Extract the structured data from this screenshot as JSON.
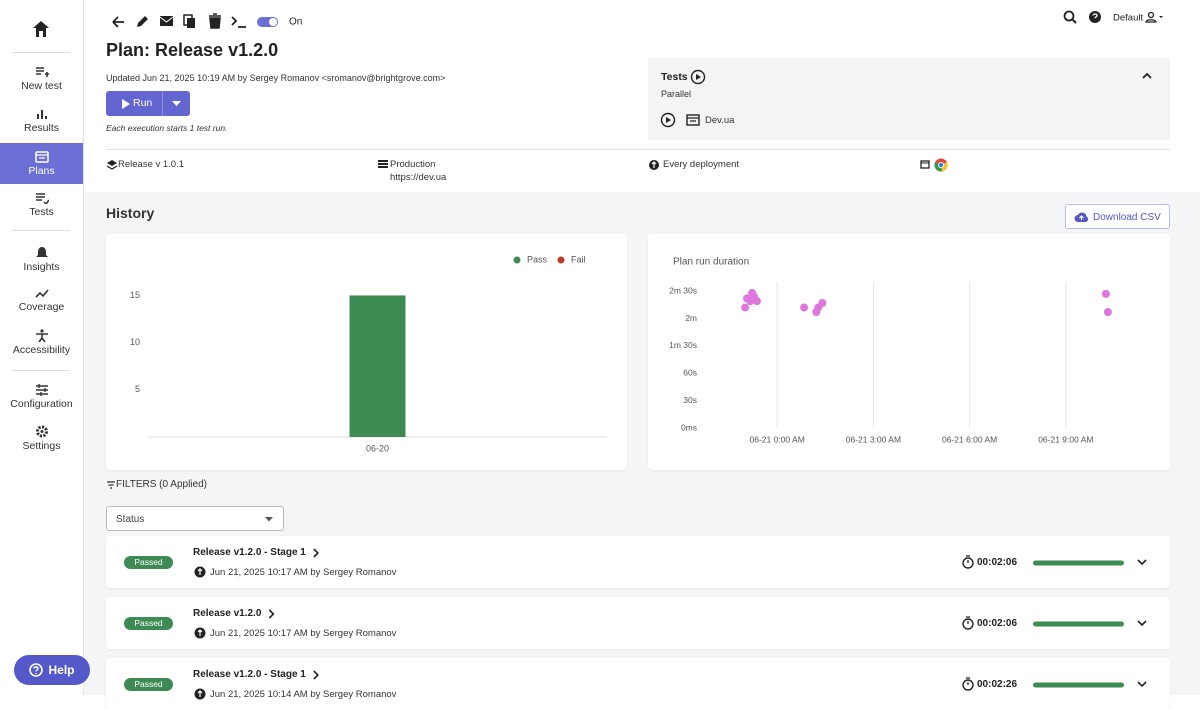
{
  "sidebar": {
    "items": [
      "New test",
      "Results",
      "Plans",
      "Tests",
      "Insights",
      "Coverage",
      "Accessibility",
      "Configuration",
      "Settings"
    ],
    "help": "Help"
  },
  "toolbar": {
    "toggle": "On",
    "user": "Default"
  },
  "header": {
    "title": "Plan: Release v1.2.0",
    "updated": "Updated Jun 21, 2025 10:19 AM by Sergey Romanov <sromanov@brightgrove.com>",
    "run": "Run",
    "note": "Each execution starts 1 test run."
  },
  "tests_panel": {
    "title": "Tests",
    "mode": "Parallel",
    "environment": "Dev.ua"
  },
  "info": {
    "release": "Release v 1.0.1",
    "environment": "Production",
    "url": "https://dev.ua",
    "trigger": "Every deployment"
  },
  "history": {
    "title": "History",
    "download": "Download CSV"
  },
  "chart_data": [
    {
      "type": "bar",
      "categories": [
        "06-20"
      ],
      "series": [
        {
          "name": "Pass",
          "color": "#3d8b52",
          "values": [
            15
          ]
        },
        {
          "name": "Fail",
          "color": "#c0392b",
          "values": [
            0
          ]
        }
      ],
      "ylim": [
        0,
        16
      ],
      "yticks": [
        5,
        10,
        15
      ],
      "legend": "top-right"
    },
    {
      "type": "scatter",
      "title": "Plan run duration",
      "color": "#dd77dd",
      "x": [
        -1.0,
        -0.94,
        -0.78,
        -0.63,
        -0.84,
        -0.72,
        0.84,
        1.22,
        1.28,
        1.41,
        10.25,
        10.31
      ],
      "values": [
        132,
        142,
        148,
        139,
        139,
        144,
        132,
        127,
        132,
        137,
        147,
        127
      ],
      "xlim": [
        -2.25,
        11
      ],
      "xticks": [
        {
          "value": 0,
          "label": "06-21 0:00 AM"
        },
        {
          "value": 3,
          "label": "06-21 3:00 AM"
        },
        {
          "value": 6,
          "label": "06-21 6:00 AM"
        },
        {
          "value": 9,
          "label": "06-21 9:00 AM"
        }
      ],
      "ylim": [
        0,
        160
      ],
      "yticks": [
        {
          "value": 0,
          "label": "0ms"
        },
        {
          "value": 30,
          "label": "30s"
        },
        {
          "value": 60,
          "label": "60s"
        },
        {
          "value": 90,
          "label": "1m 30s"
        },
        {
          "value": 120,
          "label": "2m"
        },
        {
          "value": 150,
          "label": "2m 30s"
        }
      ],
      "grid": "x"
    }
  ],
  "filters": {
    "label": "FILTERS (0 Applied)",
    "status": "Status"
  },
  "runs": {
    "rows": [
      {
        "status": "Passed",
        "name": "Release v1.2.0 - Stage 1",
        "meta": "Jun 21, 2025 10:17 AM by Sergey Romanov",
        "duration": "00:02:06"
      },
      {
        "status": "Passed",
        "name": "Release v1.2.0",
        "meta": "Jun 21, 2025 10:17 AM by Sergey Romanov",
        "duration": "00:02:06"
      },
      {
        "status": "Passed",
        "name": "Release v1.2.0 - Stage 1",
        "meta": "Jun 21, 2025 10:14 AM by Sergey Romanov",
        "duration": "00:02:26"
      }
    ]
  }
}
